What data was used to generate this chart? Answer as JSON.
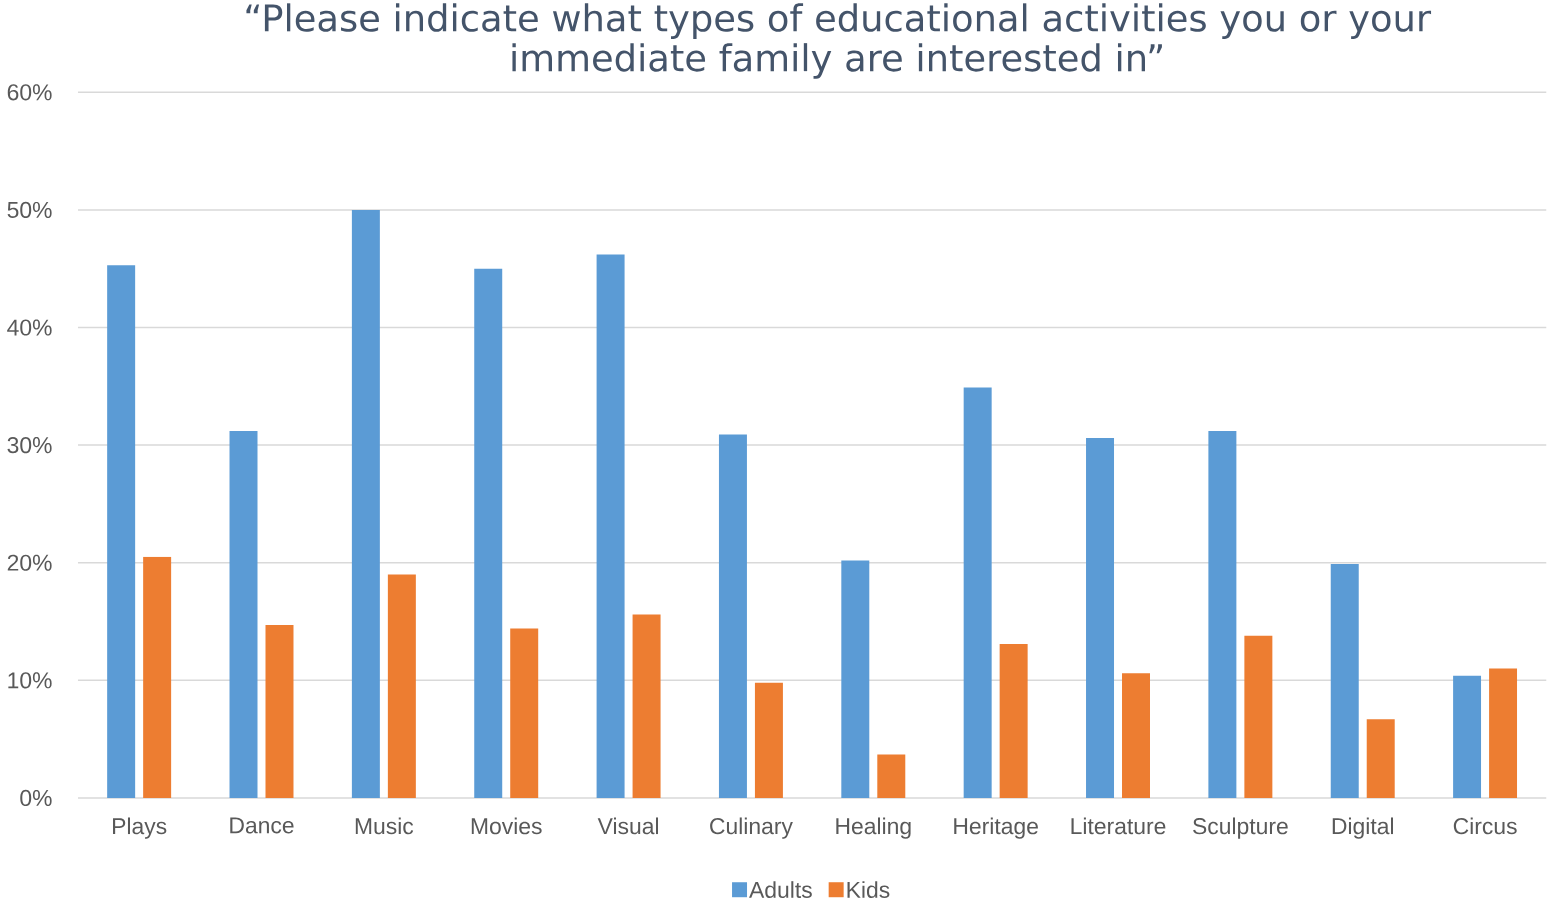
{
  "chart_data": {
    "type": "bar",
    "title": "“Please indicate what types of educational activities you or your immediate family are interested in”",
    "categories": [
      "Plays",
      "Dance",
      "Music",
      "Movies",
      "Visual",
      "Culinary",
      "Healing",
      "Heritage",
      "Literature",
      "Sculpture",
      "Digital",
      "Circus"
    ],
    "series": [
      {
        "name": "Adults",
        "color": "#5b9bd5",
        "values": [
          45.3,
          31.2,
          50.0,
          45.0,
          46.2,
          30.9,
          20.2,
          34.9,
          30.6,
          31.2,
          19.9,
          10.4
        ]
      },
      {
        "name": "Kids",
        "color": "#ed7d31",
        "values": [
          20.5,
          14.7,
          19.0,
          14.4,
          15.6,
          9.8,
          3.7,
          13.1,
          10.6,
          13.8,
          6.7,
          11.0
        ]
      }
    ],
    "ylim": [
      0,
      60
    ],
    "yticks": [
      {
        "value": 0,
        "label": "0%"
      },
      {
        "value": 10,
        "label": "10%"
      },
      {
        "value": 20,
        "label": "20%"
      },
      {
        "value": 30,
        "label": "30%"
      },
      {
        "value": 40,
        "label": "40%"
      },
      {
        "value": 50,
        "label": "50%"
      },
      {
        "value": 60,
        "label": "60%"
      }
    ],
    "grid": "y",
    "legend": "bottom"
  }
}
